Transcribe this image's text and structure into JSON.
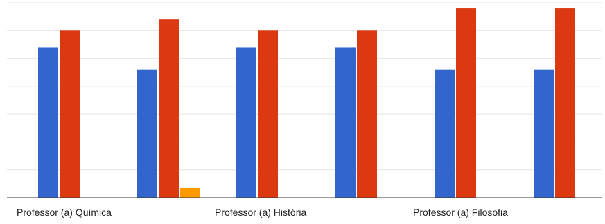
{
  "chart_data": {
    "type": "bar",
    "title": "",
    "xlabel": "",
    "ylabel": "",
    "categories": [
      "Professor (a) Química",
      "",
      "Professor (a) História",
      "",
      "Professor (a) Filosofia",
      ""
    ],
    "ylim": [
      0,
      7
    ],
    "grid": true,
    "legend": "none",
    "series": [
      {
        "color": "#3366cc",
        "values": [
          5.4,
          4.6,
          5.4,
          5.4,
          4.6,
          4.6
        ]
      },
      {
        "color": "#dc3912",
        "values": [
          6.0,
          6.4,
          6.0,
          6.0,
          6.8,
          6.8
        ]
      },
      {
        "color": "#ff9900",
        "values": [
          0,
          0.35,
          0,
          0,
          0,
          0
        ]
      }
    ]
  }
}
